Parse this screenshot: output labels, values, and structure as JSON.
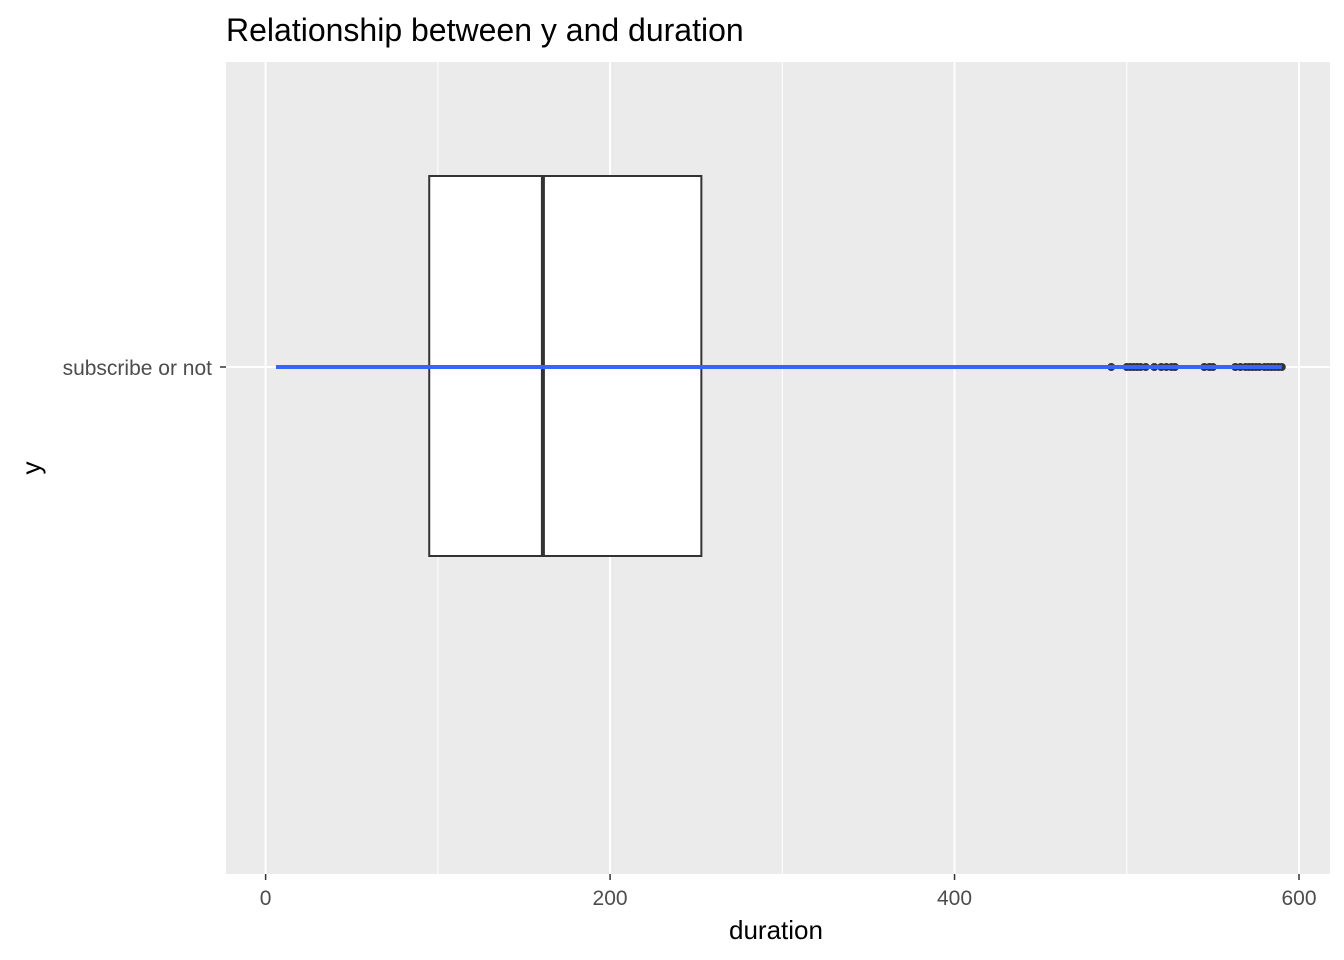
{
  "chart_data": {
    "type": "boxplot",
    "title": "Relationship between y and duration",
    "xlabel": "duration",
    "ylabel": "y",
    "xlim": [
      -23,
      618
    ],
    "x_ticks": [
      0,
      200,
      400,
      600
    ],
    "x_tick_labels": [
      "0",
      "200",
      "400",
      "600"
    ],
    "categories": [
      "subscribe or not"
    ],
    "grid": true,
    "legend": "none",
    "box": {
      "q1": 95,
      "median": 161,
      "q3": 253
    },
    "trend_line": {
      "x": [
        6,
        590
      ],
      "color": "#3366FF"
    },
    "outliers": [
      491,
      500,
      502,
      504,
      506,
      508,
      511,
      516,
      520,
      523,
      526,
      528,
      545,
      548,
      550,
      563,
      566,
      569,
      571,
      573,
      575,
      577,
      580,
      582,
      584,
      586,
      588,
      590
    ],
    "colors": {
      "panel": "#EBEBEB",
      "grid": "#FFFFFF",
      "box_fill": "#FFFFFF",
      "box_stroke": "#333333",
      "outlier": "#333333"
    }
  }
}
